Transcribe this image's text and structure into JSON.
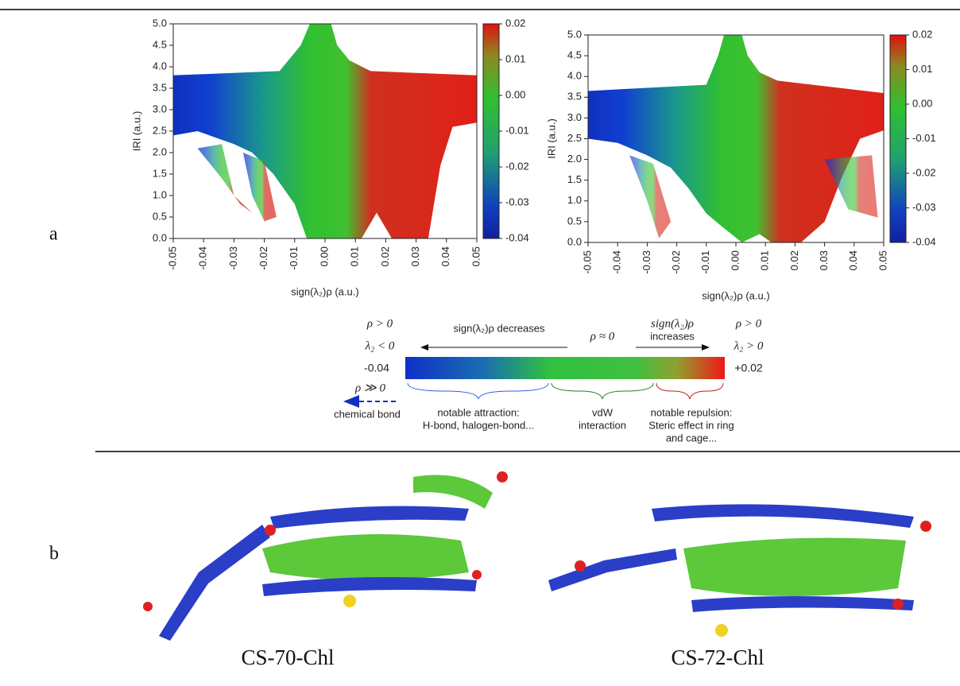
{
  "chart_data": [
    {
      "type": "scatter",
      "xlabel": "sign(λ₂)ρ (a.u.)",
      "ylabel": "IRI (a.u.)",
      "xlim": [
        -0.05,
        0.05
      ],
      "ylim": [
        0,
        5
      ],
      "xticks": [
        -0.05,
        -0.04,
        -0.03,
        -0.02,
        -0.01,
        {
          "value": 0,
          "label": "0.00"
        },
        0.01,
        0.02,
        0.03,
        0.04,
        0.05
      ],
      "yticks": [
        {
          "value": 0,
          "label": "0.0"
        },
        0.5,
        {
          "value": 1,
          "label": "1.0"
        },
        1.5,
        {
          "value": 2,
          "label": "2.0"
        },
        2.5,
        {
          "value": 3,
          "label": "3.0"
        },
        3.5,
        {
          "value": 4,
          "label": "4.0"
        },
        4.5,
        {
          "value": 5,
          "label": "5.0"
        }
      ],
      "clim": [
        -0.04,
        0.02
      ],
      "cticks": [
        0.02,
        0.01,
        {
          "value": 0,
          "label": "0.00"
        },
        -0.01,
        -0.02,
        -0.03,
        -0.04
      ]
    },
    {
      "type": "scatter",
      "xlabel": "sign(λ₂)ρ (a.u.)",
      "ylabel": "IRI (a.u.)",
      "xlim": [
        -0.05,
        0.05
      ],
      "ylim": [
        0,
        5
      ],
      "xticks": [
        -0.05,
        -0.04,
        -0.03,
        -0.02,
        -0.01,
        {
          "value": 0,
          "label": "0.00"
        },
        0.01,
        0.02,
        0.03,
        0.04,
        0.05
      ],
      "yticks": [
        {
          "value": 0,
          "label": "0.0"
        },
        0.5,
        {
          "value": 1,
          "label": "1.0"
        },
        1.5,
        {
          "value": 2,
          "label": "2.0"
        },
        2.5,
        {
          "value": 3,
          "label": "3.0"
        },
        3.5,
        {
          "value": 4,
          "label": "4.0"
        },
        4.5,
        {
          "value": 5,
          "label": "5.0"
        }
      ],
      "clim": [
        -0.04,
        0.02
      ],
      "cticks": [
        0.02,
        0.01,
        {
          "value": 0,
          "label": "0.00"
        },
        -0.01,
        -0.02,
        -0.03,
        -0.04
      ]
    }
  ],
  "panel_labels": [
    "a",
    "b"
  ],
  "legend": {
    "left_cond1": "ρ > 0",
    "left_cond2": "λ₂ < 0",
    "decreases": "sign(λ₂)ρ decreases",
    "middle": "ρ ≈ 0",
    "increases1": "sign(λ₂)ρ",
    "increases2": "increases",
    "right_cond1": "ρ > 0",
    "right_cond2": "λ₂ > 0",
    "low": "-0.04",
    "high": "+0.02",
    "strong": "ρ ≫ 0",
    "chemical_bond": "chemical bond",
    "attraction1": "notable attraction:",
    "attraction2": "H-bond, halogen-bond...",
    "vdw1": "vdW",
    "vdw2": "interaction",
    "repulsion1": "notable repulsion:",
    "repulsion2": "Steric effect in ring",
    "repulsion3": "and cage..."
  },
  "captions": [
    "CS-70-Chl",
    "CS-72-Chl"
  ]
}
